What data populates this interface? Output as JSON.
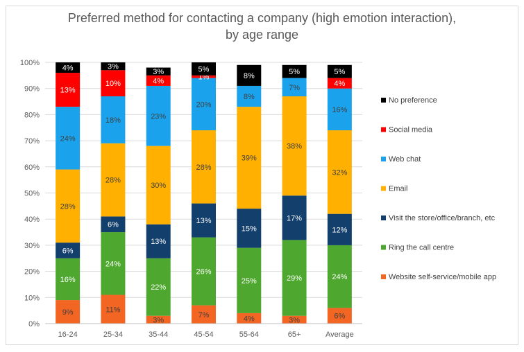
{
  "chart_data": {
    "type": "bar",
    "stacked": true,
    "title_lines": [
      "Preferred method for contacting a company (high emotion interaction),",
      "by age range"
    ],
    "categories": [
      "16-24",
      "25-34",
      "35-44",
      "45-54",
      "55-64",
      "65+",
      "Average"
    ],
    "ylim": [
      0,
      100
    ],
    "y_ticks": [
      "0%",
      "10%",
      "20%",
      "30%",
      "40%",
      "50%",
      "60%",
      "70%",
      "80%",
      "90%",
      "100%"
    ],
    "legend_position": "right",
    "series": [
      {
        "name": "Website self-service/mobile app",
        "color": "#f26522",
        "label_color": "#404040",
        "values": [
          9,
          11,
          3,
          7,
          4,
          3,
          6
        ],
        "labels": [
          "9%",
          "11%",
          "3%",
          "7%",
          "4%",
          "3%",
          "6%"
        ]
      },
      {
        "name": "Ring the call centre",
        "color": "#4ea72e",
        "label_color": "#ffffff",
        "values": [
          16,
          24,
          22,
          26,
          25,
          29,
          24
        ],
        "labels": [
          "16%",
          "24%",
          "22%",
          "26%",
          "25%",
          "29%",
          "24%"
        ]
      },
      {
        "name": "Visit the store/office/branch, etc",
        "color": "#123f6b",
        "label_color": "#ffffff",
        "values": [
          6,
          6,
          13,
          13,
          15,
          17,
          12
        ],
        "labels": [
          "6%",
          "6%",
          "13%",
          "13%",
          "15%",
          "17%",
          "12%"
        ]
      },
      {
        "name": "Email",
        "color": "#ffb000",
        "label_color": "#404040",
        "values": [
          28,
          28,
          30,
          28,
          39,
          38,
          32
        ],
        "labels": [
          "28%",
          "28%",
          "30%",
          "28%",
          "39%",
          "38%",
          "32%"
        ]
      },
      {
        "name": "Web chat",
        "color": "#1aa3ec",
        "label_color": "#404040",
        "values": [
          24,
          18,
          23,
          20,
          8,
          7,
          16
        ],
        "labels": [
          "24%",
          "18%",
          "23%",
          "20%",
          "8%",
          "7%",
          "16%"
        ]
      },
      {
        "name": "Social media",
        "color": "#ff0000",
        "label_color": "#ffffff",
        "values": [
          13,
          10,
          4,
          1,
          0,
          0,
          4
        ],
        "labels": [
          "13%",
          "10%",
          "4%",
          "1%",
          "",
          "",
          "4%"
        ]
      },
      {
        "name": "No preference",
        "color": "#000000",
        "label_color": "#ffffff",
        "values": [
          4,
          3,
          3,
          5,
          8,
          5,
          5
        ],
        "labels": [
          "4%",
          "3%",
          "3%",
          "5%",
          "8%",
          "5%",
          "5%"
        ]
      }
    ],
    "legend_order": [
      "No preference",
      "Social media",
      "Web chat",
      "Email",
      "Visit the store/office/branch, etc",
      "Ring the call centre",
      "Website self-service/mobile app"
    ]
  }
}
